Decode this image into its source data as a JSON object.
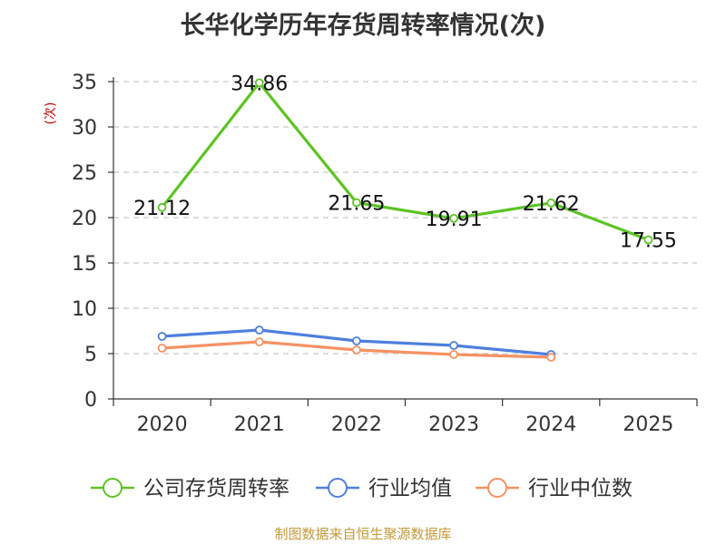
{
  "chart_data": {
    "type": "line",
    "title": "长华化学历年存货周转率情况(次)",
    "ylabel": "(次)",
    "categories": [
      "2020",
      "2021",
      "2022",
      "2023",
      "2024",
      "2025"
    ],
    "ylim": [
      0,
      35
    ],
    "yticks": [
      0,
      5,
      10,
      15,
      20,
      25,
      30,
      35
    ],
    "grid": true,
    "legend_position": "bottom",
    "series": [
      {
        "name": "公司存货周转率",
        "color": "#5cc424",
        "values": [
          21.12,
          34.86,
          21.65,
          19.91,
          21.62,
          17.55
        ],
        "labels": [
          "21.12",
          "34.86",
          "21.65",
          "19.91",
          "21.62",
          "17.55"
        ]
      },
      {
        "name": "行业均值",
        "color": "#4f7fde",
        "values": [
          6.9,
          7.6,
          6.4,
          5.9,
          4.9,
          null
        ]
      },
      {
        "name": "行业中位数",
        "color": "#f59263",
        "values": [
          5.6,
          6.3,
          5.4,
          4.9,
          4.6,
          null
        ]
      }
    ]
  },
  "source": "制图数据来自恒生聚源数据库"
}
